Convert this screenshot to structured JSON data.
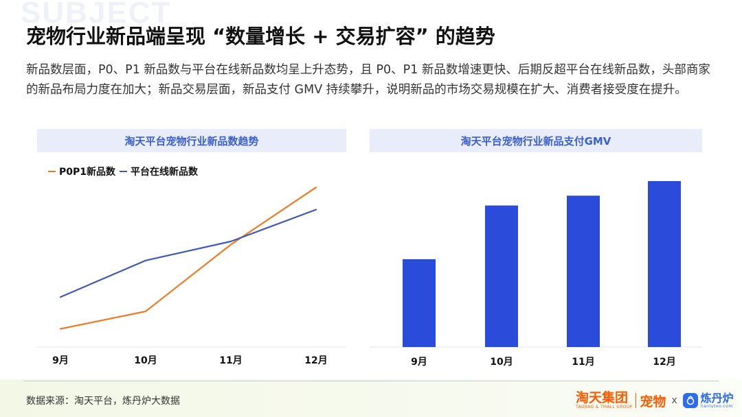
{
  "watermark": {
    "text": "SUBJECT"
  },
  "title": "宠物行业新品端呈现 “数量增长 + 交易扩容” 的趋势",
  "description": "新品数层面，P0、P1 新品数与平台在线新品数均呈上升态势，且 P0、P1 新品数增速更快、后期反超平台在线新品数，头部商家的新品布局力度在加大；新品交易层面，新品支付 GMV 持续攀升，说明新品的市场交易规模在扩大、消费者接受度在提升。",
  "colors": {
    "orange": "#f07a24",
    "blue": "#3d58b8",
    "bar": "#2b4bdb",
    "panel_head_bg": "#e8edf9",
    "panel_head_text": "#3a5fd0"
  },
  "chart_data": [
    {
      "type": "line",
      "title": "淘天平台宠物行业新品数趋势",
      "categories": [
        "9月",
        "10月",
        "11月",
        "12月"
      ],
      "series": [
        {
          "name": "P0P1新品数",
          "color": "#f07a24",
          "values": [
            11,
            22,
            64,
            100
          ]
        },
        {
          "name": "平台在线新品数",
          "color": "#3d58b8",
          "values": [
            31,
            54,
            66,
            86
          ]
        }
      ],
      "ylim": [
        0,
        110
      ],
      "xlabel": "",
      "ylabel": "",
      "legend": "top-left",
      "grid": false,
      "y_axis_visible": false
    },
    {
      "type": "bar",
      "title": "淘天平台宠物行业新品支付GMV",
      "categories": [
        "9月",
        "10月",
        "11月",
        "12月"
      ],
      "values": [
        54,
        87,
        93,
        102
      ],
      "ylim": [
        0,
        110
      ],
      "xlabel": "",
      "ylabel": "",
      "grid": false,
      "y_axis_visible": false
    }
  ],
  "footer": {
    "source": "数据来源：淘天平台，炼丹炉大数据",
    "logo_tmall": "淘天集团",
    "logo_tmall_sub": "TAOBAO & TMALL GROUP",
    "logo_pet": "宠物",
    "logo_x": "x",
    "logo_ldl": "炼丹炉",
    "logo_ldl_sub": "lianlutoo.com"
  }
}
